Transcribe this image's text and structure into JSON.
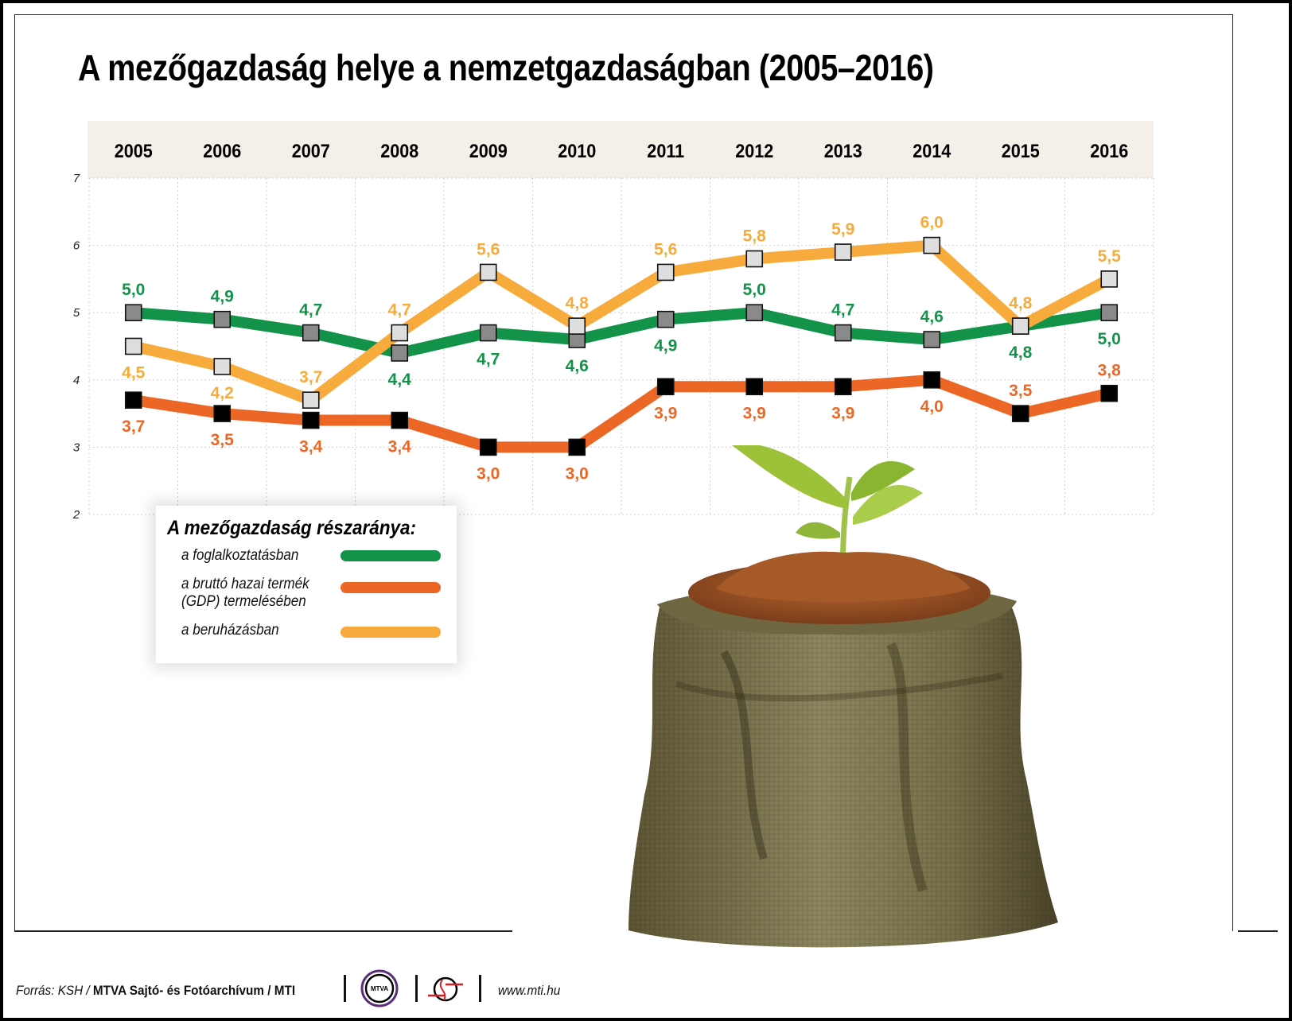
{
  "title": "A mezőgazdaság helye a nemzetgazdaságban (2005–2016)",
  "colors": {
    "employment": "#13924a",
    "gdp": "#ec6725",
    "investment": "#f7ab3d",
    "header_band": "#f4efe7",
    "grid": "#cfcfcf"
  },
  "legend": {
    "title": "A mezőgazdaság részaránya:",
    "items": [
      {
        "label": "a foglalkoztatásban",
        "color": "#13924a"
      },
      {
        "label": "a bruttó hazai termék\n(GDP) termelésében",
        "color": "#ec6725"
      },
      {
        "label": "a beruházásban",
        "color": "#f7ab3d"
      }
    ]
  },
  "footer": {
    "source_prefix": "Forrás: KSH / ",
    "source_bold": "MTVA Sajtó- és Fotóarchívum / MTI",
    "logo1": "MTVA",
    "url": "www.mti.hu"
  },
  "chart_data": {
    "type": "line",
    "title": "A mezőgazdaság helye a nemzetgazdaságban (2005–2016)",
    "xlabel": "",
    "ylabel": "",
    "categories": [
      "2005",
      "2006",
      "2007",
      "2008",
      "2009",
      "2010",
      "2011",
      "2012",
      "2013",
      "2014",
      "2015",
      "2016"
    ],
    "yticks": [
      2,
      3,
      4,
      5,
      6,
      7
    ],
    "ylim": [
      2,
      7
    ],
    "grid": true,
    "legend_position": "lower-left inset",
    "series": [
      {
        "name": "a foglalkoztatásban",
        "color": "#13924a",
        "marker": "dark-gray-square",
        "values": [
          5.0,
          4.9,
          4.7,
          4.4,
          4.7,
          4.6,
          4.9,
          5.0,
          4.7,
          4.6,
          4.8,
          5.0
        ],
        "labels": [
          "5,0",
          "4,9",
          "4,7",
          "4,4",
          "4,7",
          "4,6",
          "4,9",
          "5,0",
          "4,7",
          "4,6",
          "4,8",
          "5,0"
        ]
      },
      {
        "name": "a bruttó hazai termék (GDP) termelésében",
        "color": "#ec6725",
        "marker": "black-square",
        "values": [
          3.7,
          3.5,
          3.4,
          3.4,
          3.0,
          3.0,
          3.9,
          3.9,
          3.9,
          4.0,
          3.5,
          3.8
        ],
        "labels": [
          "3,7",
          "3,5",
          "3,4",
          "3,4",
          "3,0",
          "3,0",
          "3,9",
          "3,9",
          "3,9",
          "4,0",
          "3,5",
          "3,8"
        ]
      },
      {
        "name": "a beruházásban",
        "color": "#f7ab3d",
        "marker": "light-gray-square",
        "values": [
          4.5,
          4.2,
          3.7,
          4.7,
          5.6,
          4.8,
          5.6,
          5.8,
          5.9,
          6.0,
          4.8,
          5.5
        ],
        "labels": [
          "4,5",
          "4,2",
          "3,7",
          "4,7",
          "5,6",
          "4,8",
          "5,6",
          "5,8",
          "5,9",
          "6,0",
          "4,8",
          "5,5"
        ]
      }
    ]
  }
}
